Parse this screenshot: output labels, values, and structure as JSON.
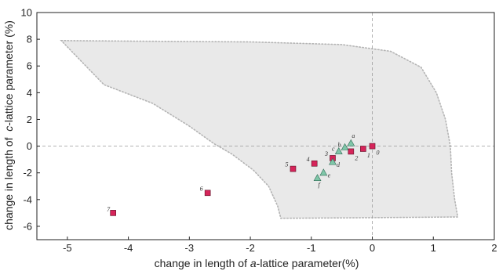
{
  "chart_data": {
    "type": "scatter",
    "title": "",
    "xlabel_prefix": "change in length of ",
    "xlabel_italic": "a",
    "xlabel_suffix": "-lattice parameter(%)",
    "ylabel_prefix": "change in length of  ",
    "ylabel_italic": "c",
    "ylabel_suffix": "-lattice parameter (%)",
    "xlim": [
      -5.5,
      2
    ],
    "ylim": [
      -7,
      10
    ],
    "xticks": [
      "-5",
      "-4",
      "-3",
      "-2",
      "-1",
      "0",
      "1",
      "2"
    ],
    "yticks": [
      "-6",
      "-4",
      "-2",
      "0",
      "2",
      "4",
      "6",
      "8",
      "10"
    ],
    "reference_lines": {
      "x": 0,
      "y": 0
    },
    "region": {
      "fill": "#e9e9e9",
      "edge_color": "#b4b4b4",
      "boundary": [
        [
          -5.1,
          7.9
        ],
        [
          -3.6,
          7.85
        ],
        [
          -2.0,
          7.8
        ],
        [
          -0.5,
          7.6
        ],
        [
          0.3,
          7.1
        ],
        [
          0.8,
          5.9
        ],
        [
          1.05,
          4.0
        ],
        [
          1.2,
          2.0
        ],
        [
          1.28,
          0.0
        ],
        [
          1.3,
          -2.0
        ],
        [
          1.35,
          -4.0
        ],
        [
          1.4,
          -5.3
        ],
        [
          0.0,
          -5.35
        ],
        [
          -1.5,
          -5.4
        ],
        [
          -1.55,
          -4.5
        ],
        [
          -1.7,
          -3.0
        ],
        [
          -1.95,
          -1.8
        ],
        [
          -2.3,
          -0.6
        ],
        [
          -2.6,
          0.2
        ],
        [
          -3.0,
          1.5
        ],
        [
          -3.6,
          3.2
        ],
        [
          -4.4,
          4.6
        ],
        [
          -5.1,
          7.9
        ]
      ]
    },
    "series": [
      {
        "marker": "square",
        "color": "#d6245a",
        "points": [
          {
            "x": 0.0,
            "y": 0.0,
            "label": "0"
          },
          {
            "x": -0.15,
            "y": -0.2,
            "label": "1"
          },
          {
            "x": -0.35,
            "y": -0.4,
            "label": "2"
          },
          {
            "x": -0.65,
            "y": -0.9,
            "label": "3"
          },
          {
            "x": -0.95,
            "y": -1.3,
            "label": "4"
          },
          {
            "x": -1.3,
            "y": -1.7,
            "label": "5"
          },
          {
            "x": -2.7,
            "y": -3.5,
            "label": "6"
          },
          {
            "x": -4.25,
            "y": -5.0,
            "label": "7"
          }
        ]
      },
      {
        "marker": "triangle",
        "color": "#7fc6a8",
        "points": [
          {
            "x": -0.35,
            "y": 0.2,
            "label": "a"
          },
          {
            "x": -0.45,
            "y": -0.1,
            "label": "b"
          },
          {
            "x": -0.55,
            "y": -0.4,
            "label": "c"
          },
          {
            "x": -0.65,
            "y": -1.2,
            "label": "d"
          },
          {
            "x": -0.8,
            "y": -2.0,
            "label": "e"
          },
          {
            "x": -0.9,
            "y": -2.4,
            "label": "f"
          }
        ]
      }
    ]
  }
}
